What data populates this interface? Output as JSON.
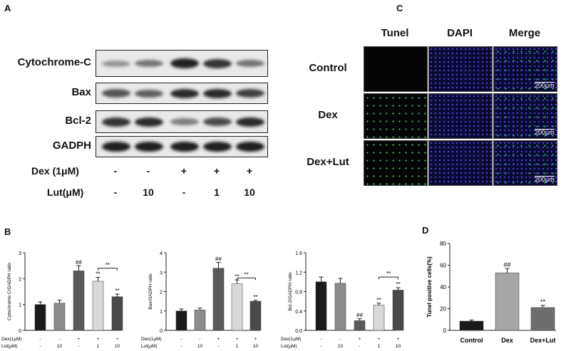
{
  "panels": {
    "a": "A",
    "b": "B",
    "c": "C",
    "d": "D"
  },
  "blots": {
    "rows": [
      {
        "label": "Cytochrome-C",
        "intensity": [
          0.4,
          0.55,
          0.95,
          0.85,
          0.55
        ]
      },
      {
        "label": "Bax",
        "intensity": [
          0.7,
          0.65,
          0.9,
          0.9,
          0.8
        ]
      },
      {
        "label": "Bcl-2",
        "intensity": [
          0.85,
          0.9,
          0.5,
          0.75,
          0.9
        ]
      },
      {
        "label": "GADPH",
        "intensity": [
          0.95,
          0.95,
          0.95,
          0.95,
          0.95
        ]
      }
    ],
    "treatments": [
      {
        "label": "Dex (1μM)",
        "values": [
          "-",
          "-",
          "+",
          "+",
          "+"
        ]
      },
      {
        "label": "Lut(μM)",
        "values": [
          "-",
          "10",
          "-",
          "1",
          "10"
        ]
      }
    ]
  },
  "microscopy": {
    "columns": [
      "Tunel",
      "DAPI",
      "Merge"
    ],
    "rows": [
      "Control",
      "Dex",
      "Dex+Lut"
    ],
    "scale_bar": "200μm"
  },
  "chart_data": [
    {
      "type": "bar",
      "ylabel": "Cytochrome C/GADPH ratio",
      "ylim": [
        0,
        3
      ],
      "yticks": [
        0,
        1,
        2,
        3
      ],
      "values": [
        1.0,
        1.05,
        2.3,
        1.9,
        1.3
      ],
      "errors": [
        0.1,
        0.12,
        0.2,
        0.15,
        0.1
      ],
      "annotations": [
        "",
        "",
        "##",
        "**",
        "**"
      ],
      "bracket": {
        "from": 3,
        "to": 4,
        "label": "**",
        "y": 2.4
      },
      "colors": [
        "#1a1a1a",
        "#8c8c8c",
        "#5a5a5a",
        "#d9d9d9",
        "#4a4a4a"
      ],
      "row_labels": [
        "Dex(1μM)",
        "Lut(μM)"
      ],
      "row_values": [
        [
          "-",
          "-",
          "+",
          "+",
          "+"
        ],
        [
          "-",
          "10",
          "-",
          "1",
          "10"
        ]
      ]
    },
    {
      "type": "bar",
      "ylabel": "Bax/GADPH ratio",
      "ylim": [
        0,
        4
      ],
      "yticks": [
        0,
        1,
        2,
        3,
        4
      ],
      "values": [
        1.0,
        1.05,
        3.2,
        2.4,
        1.5
      ],
      "errors": [
        0.1,
        0.1,
        0.3,
        0.2,
        0.05
      ],
      "annotations": [
        "",
        "",
        "##",
        "**",
        "**"
      ],
      "bracket": {
        "from": 3,
        "to": 4,
        "label": "**",
        "y": 2.7
      },
      "colors": [
        "#1a1a1a",
        "#8c8c8c",
        "#5a5a5a",
        "#d9d9d9",
        "#4a4a4a"
      ],
      "row_labels": [
        "Dex(1μM)",
        "Lut(μM)"
      ],
      "row_values": [
        [
          "-",
          "-",
          "+",
          "+",
          "+"
        ],
        [
          "-",
          "10",
          "-",
          "1",
          "10"
        ]
      ]
    },
    {
      "type": "bar",
      "ylabel": "Bcl-2/GADPH ratio",
      "ylim": [
        0,
        1.6
      ],
      "yticks": [
        0.0,
        0.4,
        0.8,
        1.2,
        1.6
      ],
      "ytick_labels": [
        "0.0",
        "0.4",
        "0.8",
        "1.2",
        "1.6"
      ],
      "values": [
        1.0,
        0.97,
        0.2,
        0.52,
        0.83
      ],
      "errors": [
        0.1,
        0.1,
        0.04,
        0.04,
        0.05
      ],
      "annotations": [
        "",
        "",
        "##",
        "**",
        "**"
      ],
      "bracket": {
        "from": 3,
        "to": 4,
        "label": "**",
        "y": 1.1
      },
      "colors": [
        "#1a1a1a",
        "#8c8c8c",
        "#5a5a5a",
        "#d9d9d9",
        "#4a4a4a"
      ],
      "row_labels": [
        "Dex(1μM)",
        "Lut(μM)"
      ],
      "row_values": [
        [
          "-",
          "-",
          "+",
          "+",
          "+"
        ],
        [
          "-",
          "10",
          "-",
          "1",
          "10"
        ]
      ]
    },
    {
      "type": "bar",
      "ylabel": "Tunel positive cells(%)",
      "ylim": [
        0,
        80
      ],
      "yticks": [
        0,
        20,
        40,
        60,
        80
      ],
      "categories": [
        "Control",
        "Dex",
        "Dex+Lut"
      ],
      "values": [
        8.5,
        53,
        21
      ],
      "errors": [
        1,
        4,
        2
      ],
      "annotations": [
        "",
        "##",
        "**"
      ],
      "colors": [
        "#1a1a1a",
        "#a6a6a6",
        "#6e6e6e"
      ]
    }
  ]
}
